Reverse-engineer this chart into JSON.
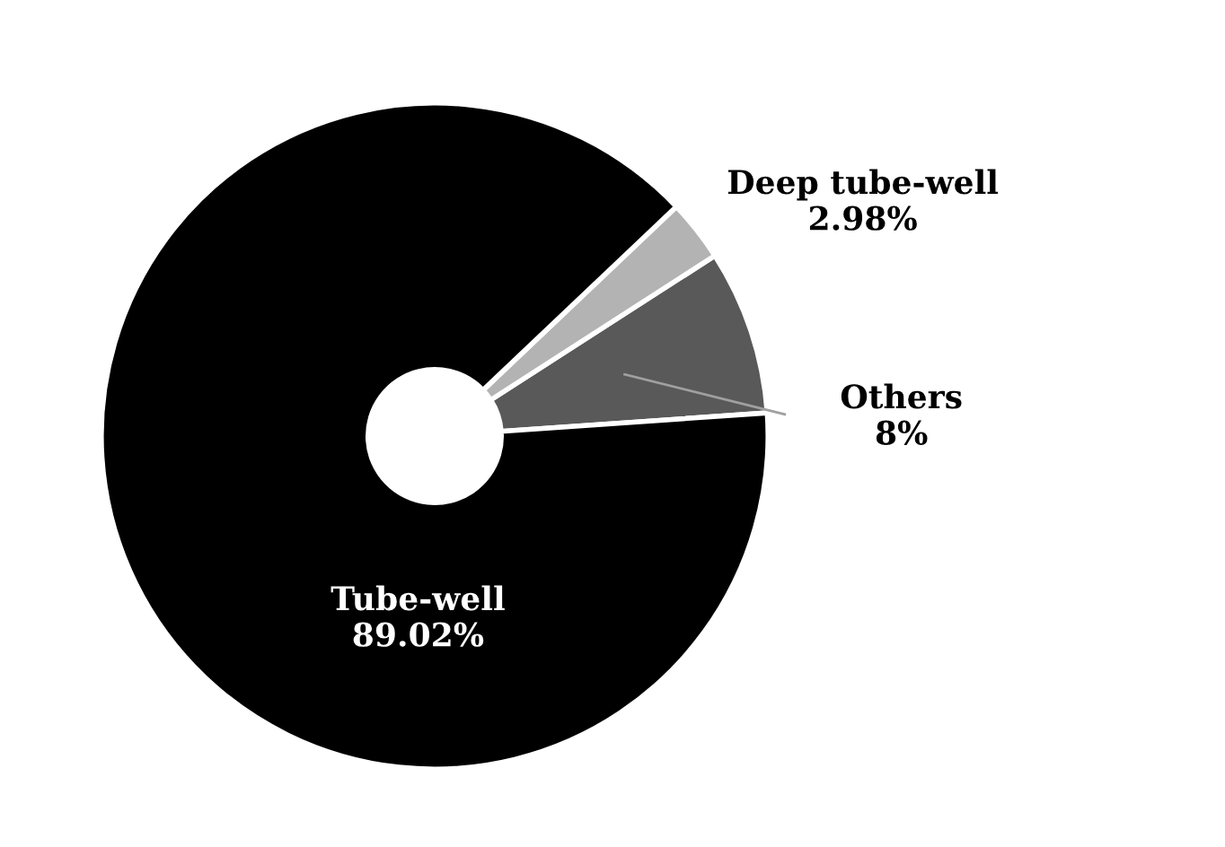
{
  "chart_data": {
    "type": "donut",
    "categories": [
      "Others",
      "Deep tube-well",
      "Tube-well"
    ],
    "values": [
      8,
      2.98,
      89.02
    ],
    "colors": [
      "#595959",
      "#b3b3b3",
      "#000000"
    ],
    "value_labels": [
      "8%",
      "2.98%",
      "89.02%"
    ]
  }
}
